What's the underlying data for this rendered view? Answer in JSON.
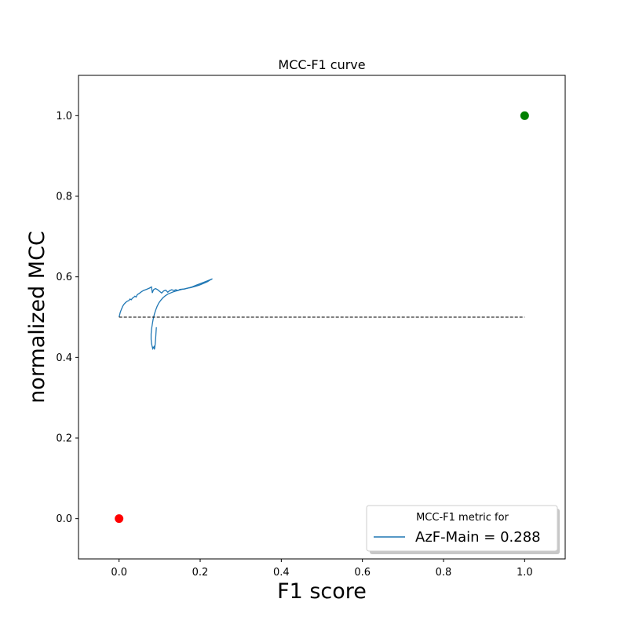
{
  "chart_data": {
    "type": "line",
    "title": "MCC-F1 curve",
    "xlabel": "F1 score",
    "ylabel": "normalized MCC",
    "xlim": [
      -0.1,
      1.1
    ],
    "ylim": [
      -0.1,
      1.1
    ],
    "x_ticks": [
      "0.0",
      "0.2",
      "0.4",
      "0.6",
      "0.8",
      "1.0"
    ],
    "y_ticks": [
      "0.0",
      "0.2",
      "0.4",
      "0.6",
      "0.8",
      "1.0"
    ],
    "grid": false,
    "legend_position": "lower right",
    "legend_title": "MCC-F1 metric for",
    "colors": {
      "curve": "#1f77b4",
      "baseline": "#000000",
      "worst_point": "#ff0000",
      "best_point": "#008000"
    },
    "series": [
      {
        "name": "AzF-Main = 0.288",
        "style": "solid",
        "x": [
          0.092,
          0.091,
          0.09,
          0.089,
          0.088,
          0.087,
          0.086,
          0.085,
          0.084,
          0.083,
          0.082,
          0.081,
          0.08,
          0.079,
          0.079,
          0.08,
          0.082,
          0.084,
          0.087,
          0.09,
          0.094,
          0.098,
          0.103,
          0.108,
          0.114,
          0.12,
          0.127,
          0.134,
          0.141,
          0.148,
          0.155,
          0.162,
          0.169,
          0.176,
          0.183,
          0.19,
          0.197,
          0.204,
          0.211,
          0.218,
          0.224,
          0.23
        ],
        "y": [
          0.475,
          0.46,
          0.445,
          0.432,
          0.424,
          0.42,
          0.426,
          0.424,
          0.425,
          0.422,
          0.426,
          0.43,
          0.435,
          0.445,
          0.458,
          0.47,
          0.482,
          0.495,
          0.507,
          0.517,
          0.527,
          0.535,
          0.542,
          0.548,
          0.553,
          0.557,
          0.56,
          0.563,
          0.565,
          0.567,
          0.569,
          0.57,
          0.572,
          0.573,
          0.575,
          0.577,
          0.579,
          0.582,
          0.585,
          0.588,
          0.592,
          0.595
        ]
      },
      {
        "style": "solid",
        "x": [
          0.0,
          0.003,
          0.006,
          0.009,
          0.012,
          0.015,
          0.018,
          0.021,
          0.024,
          0.027,
          0.03,
          0.033,
          0.036,
          0.039,
          0.042,
          0.045,
          0.05,
          0.055,
          0.06,
          0.065,
          0.07,
          0.075,
          0.08,
          0.082,
          0.084,
          0.086,
          0.088,
          0.09,
          0.095,
          0.1,
          0.105,
          0.11,
          0.115,
          0.12,
          0.125,
          0.13,
          0.135,
          0.14,
          0.145,
          0.15,
          0.16,
          0.17,
          0.18,
          0.19,
          0.2,
          0.21,
          0.22,
          0.23
        ],
        "y": [
          0.5,
          0.512,
          0.52,
          0.527,
          0.532,
          0.535,
          0.538,
          0.54,
          0.541,
          0.545,
          0.543,
          0.547,
          0.549,
          0.552,
          0.55,
          0.556,
          0.559,
          0.563,
          0.566,
          0.568,
          0.57,
          0.572,
          0.575,
          0.56,
          0.566,
          0.569,
          0.57,
          0.571,
          0.568,
          0.564,
          0.56,
          0.565,
          0.567,
          0.562,
          0.566,
          0.568,
          0.566,
          0.568,
          0.566,
          0.569,
          0.57,
          0.572,
          0.575,
          0.579,
          0.583,
          0.587,
          0.591,
          0.595
        ]
      },
      {
        "style": "dashed",
        "x": [
          0.0,
          1.0
        ],
        "y": [
          0.5,
          0.5
        ]
      }
    ],
    "points": [
      {
        "x": 0.0,
        "y": 0.0,
        "color": "#ff0000"
      },
      {
        "x": 1.0,
        "y": 1.0,
        "color": "#008000"
      }
    ]
  }
}
